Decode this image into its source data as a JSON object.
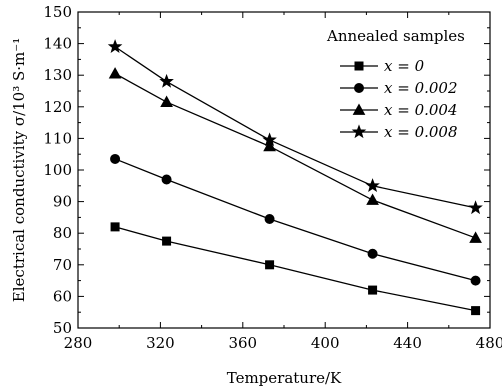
{
  "chart_data": {
    "type": "line",
    "title": "",
    "xlabel": "Temperature/K",
    "ylabel": "Electrical conductivity σ/10³ S·m⁻¹",
    "xlim": [
      280,
      480
    ],
    "ylim": [
      50,
      150
    ],
    "xticks": [
      280,
      320,
      360,
      400,
      440,
      480
    ],
    "yticks": [
      50,
      60,
      70,
      80,
      90,
      100,
      110,
      120,
      130,
      140,
      150
    ],
    "grid": false,
    "legend": {
      "title": "Annealed samples",
      "placement": "top-right"
    },
    "x": [
      298,
      323,
      373,
      423,
      473
    ],
    "series": [
      {
        "name": "x = 0",
        "marker": "square",
        "values": [
          82,
          77.5,
          70,
          62,
          55.5
        ]
      },
      {
        "name": "x = 0.002",
        "marker": "circle",
        "values": [
          103.5,
          97,
          84.5,
          73.5,
          65
        ]
      },
      {
        "name": "x = 0.004",
        "marker": "triangle",
        "values": [
          130.5,
          121.5,
          107.5,
          90.5,
          78.5
        ]
      },
      {
        "name": "x = 0.008",
        "marker": "star",
        "values": [
          139,
          128,
          109.5,
          95,
          88
        ]
      }
    ]
  }
}
